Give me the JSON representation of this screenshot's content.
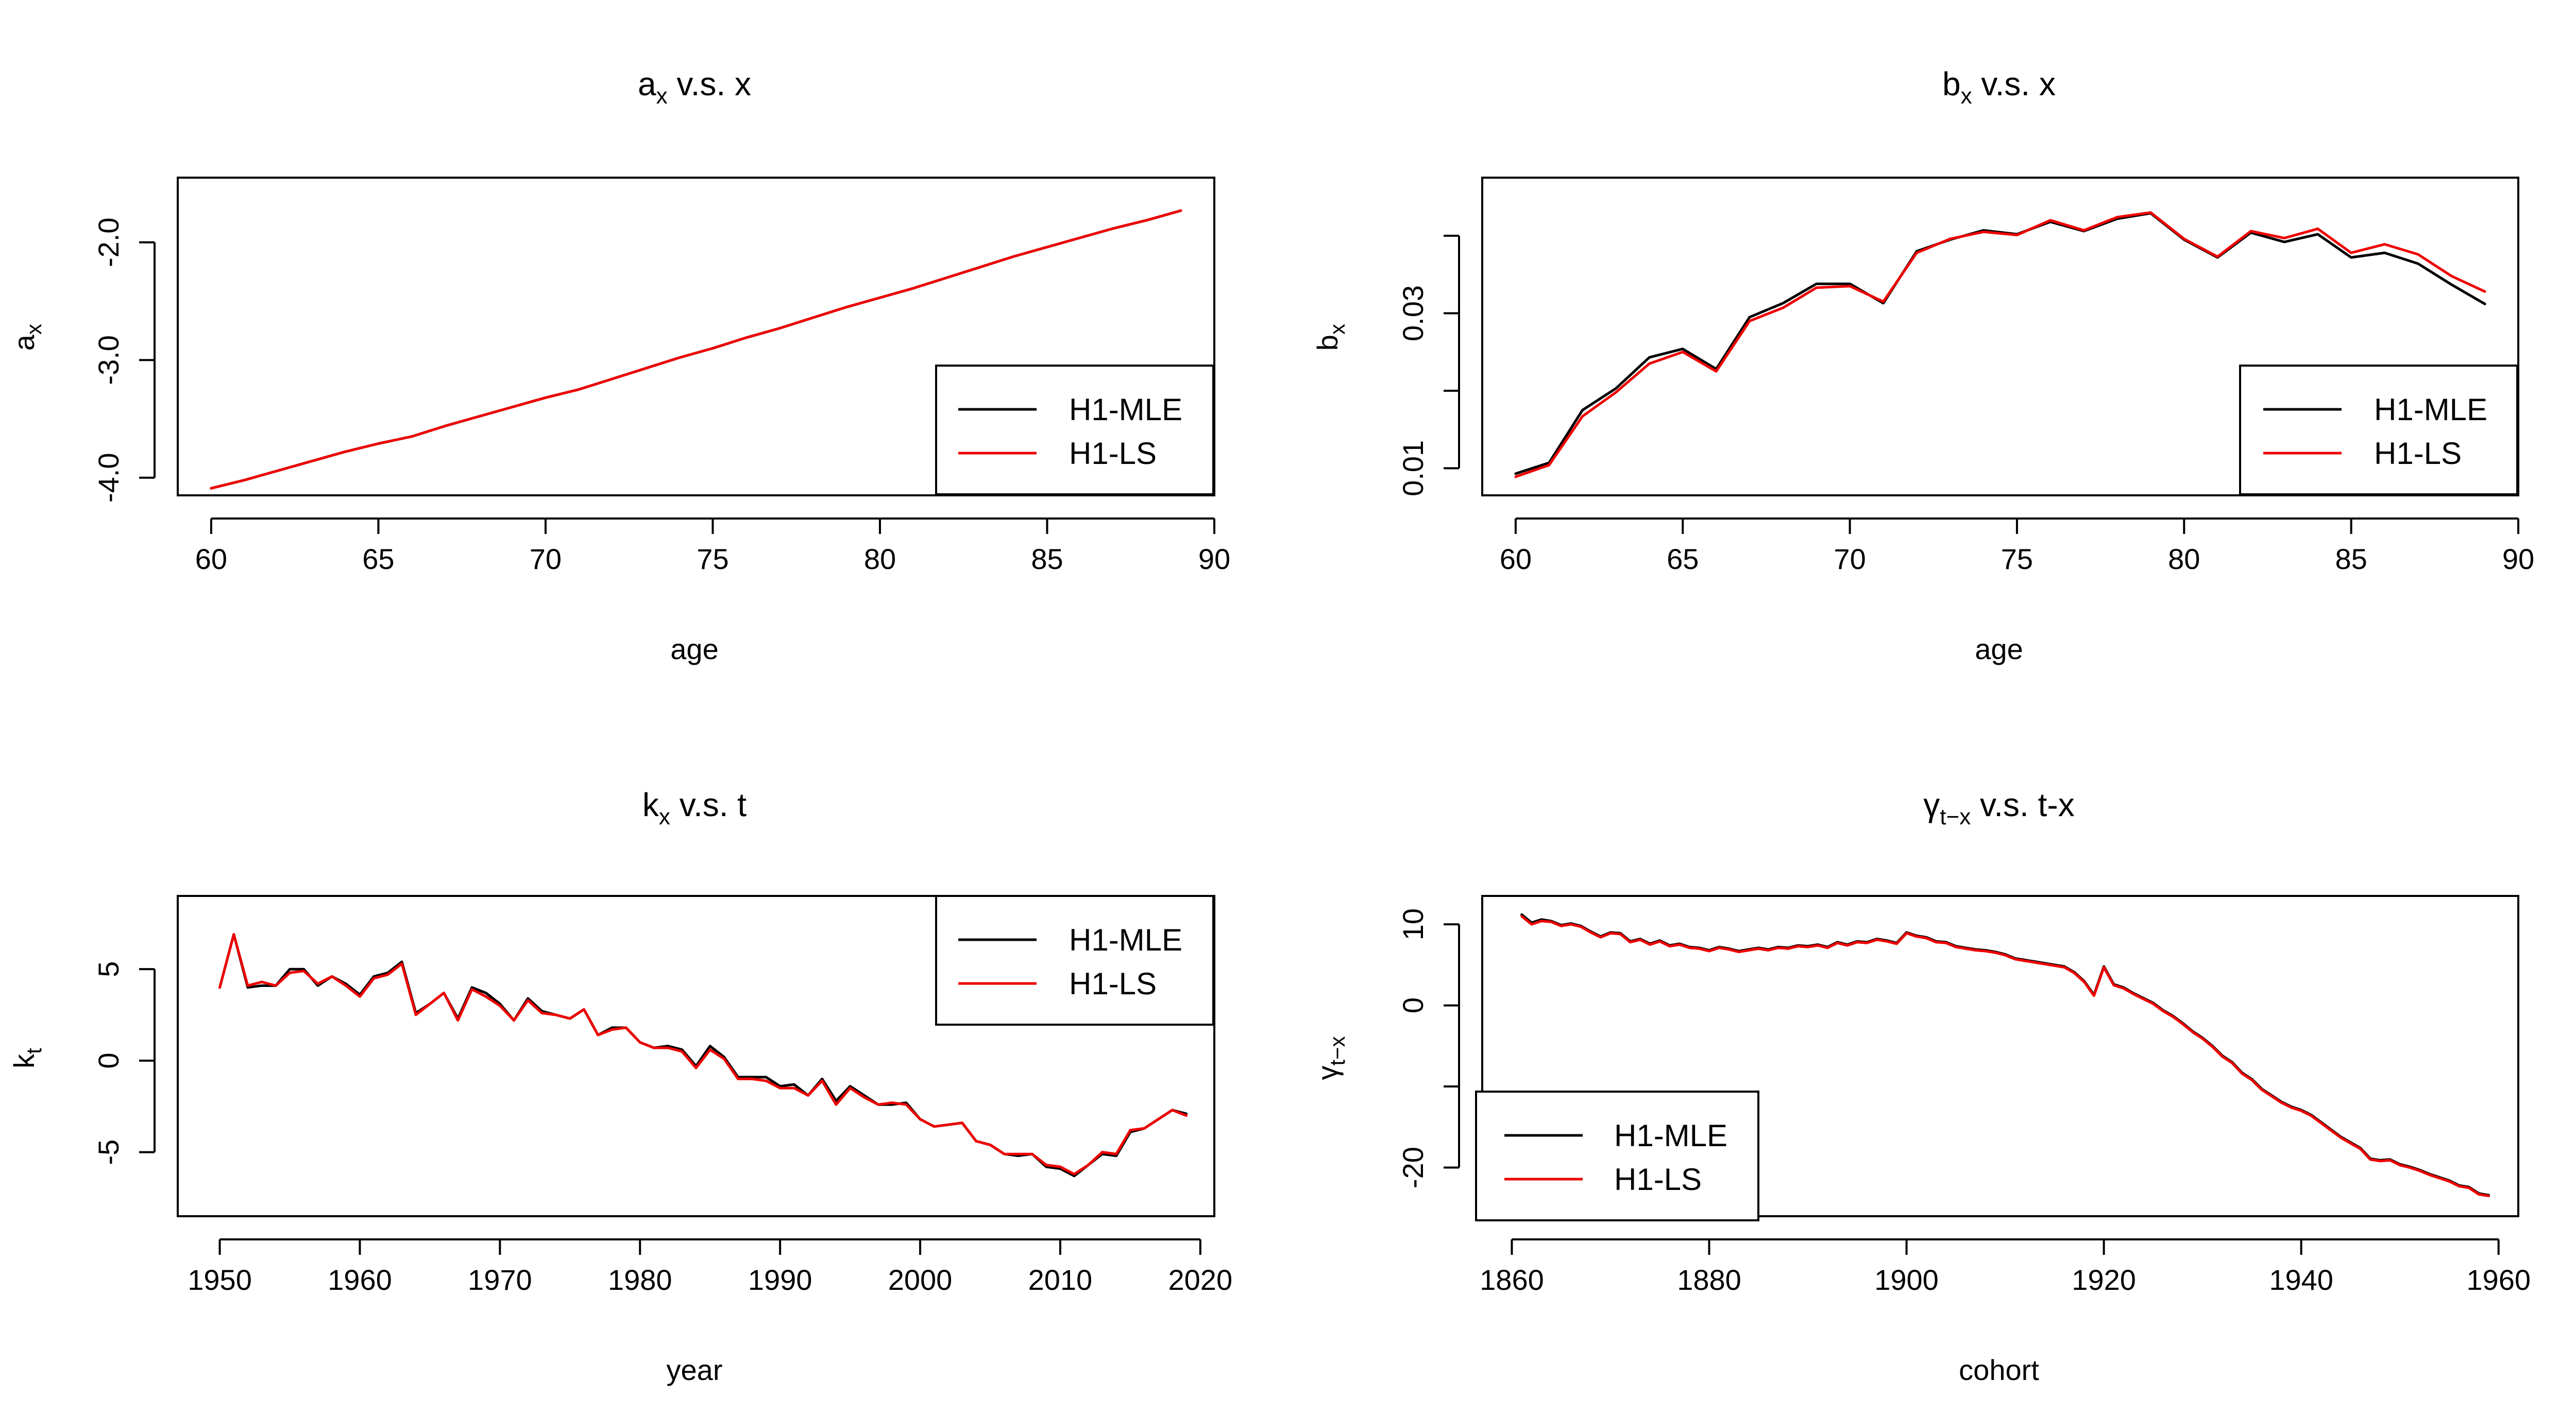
{
  "colors": {
    "mle": "#000000",
    "ls": "#ee0000",
    "axis": "#000000",
    "background": "#ffffff"
  },
  "chart_data": [
    {
      "type": "line",
      "title": {
        "main": "a",
        "sub": "x",
        "rest": " v.s. x"
      },
      "xlabel": "age",
      "ylabel": {
        "main": "a",
        "sub": "x"
      },
      "xlim": [
        59,
        90
      ],
      "ylim": [
        -4.15,
        -1.45
      ],
      "xticks": [
        60,
        65,
        70,
        75,
        80,
        85,
        90
      ],
      "xtick_labels": [
        "60",
        "65",
        "70",
        "75",
        "80",
        "85",
        "90"
      ],
      "yticks": [
        -4.0,
        -3.0,
        -2.0
      ],
      "ytick_labels": [
        "-4.0",
        "-3.0",
        "-2.0"
      ],
      "legend": {
        "position": "bottom-right",
        "labels": [
          "H1-MLE",
          "H1-LS"
        ]
      },
      "x": [
        60,
        61,
        62,
        63,
        64,
        65,
        66,
        67,
        68,
        69,
        70,
        71,
        72,
        73,
        74,
        75,
        76,
        77,
        78,
        79,
        80,
        81,
        82,
        83,
        84,
        85,
        86,
        87,
        88,
        89
      ],
      "series": [
        {
          "name": "H1-MLE",
          "color": "#000000",
          "values": [
            -4.09,
            -4.02,
            -3.94,
            -3.86,
            -3.78,
            -3.71,
            -3.65,
            -3.56,
            -3.48,
            -3.4,
            -3.32,
            -3.25,
            -3.16,
            -3.07,
            -2.98,
            -2.9,
            -2.81,
            -2.73,
            -2.64,
            -2.55,
            -2.47,
            -2.39,
            -2.3,
            -2.21,
            -2.12,
            -2.04,
            -1.96,
            -1.88,
            -1.81,
            -1.73
          ]
        },
        {
          "name": "H1-LS",
          "color": "#ee0000",
          "values": [
            -4.09,
            -4.02,
            -3.94,
            -3.86,
            -3.78,
            -3.71,
            -3.65,
            -3.56,
            -3.48,
            -3.4,
            -3.32,
            -3.25,
            -3.16,
            -3.07,
            -2.98,
            -2.9,
            -2.81,
            -2.73,
            -2.64,
            -2.55,
            -2.47,
            -2.39,
            -2.3,
            -2.21,
            -2.12,
            -2.04,
            -1.96,
            -1.88,
            -1.81,
            -1.73
          ]
        }
      ]
    },
    {
      "type": "line",
      "title": {
        "main": "b",
        "sub": "x",
        "rest": " v.s. x"
      },
      "xlabel": "age",
      "ylabel": {
        "main": "b",
        "sub": "x"
      },
      "xlim": [
        59,
        90
      ],
      "ylim": [
        0.0065,
        0.0475
      ],
      "xticks": [
        60,
        65,
        70,
        75,
        80,
        85,
        90
      ],
      "xtick_labels": [
        "60",
        "65",
        "70",
        "75",
        "80",
        "85",
        "90"
      ],
      "yticks": [
        0.01,
        0.03
      ],
      "ytick_labels": [
        "0.01",
        "0.03"
      ],
      "yticks_minor": [
        0.02,
        0.04
      ],
      "legend": {
        "position": "bottom-right",
        "labels": [
          "H1-MLE",
          "H1-LS"
        ]
      },
      "x": [
        60,
        61,
        62,
        63,
        64,
        65,
        66,
        67,
        68,
        69,
        70,
        71,
        72,
        73,
        74,
        75,
        76,
        77,
        78,
        79,
        80,
        81,
        82,
        83,
        84,
        85,
        86,
        87,
        88,
        89
      ],
      "series": [
        {
          "name": "H1-MLE",
          "color": "#000000",
          "values": [
            0.0093,
            0.0107,
            0.0175,
            0.0203,
            0.0243,
            0.0254,
            0.0228,
            0.0295,
            0.0313,
            0.0338,
            0.0338,
            0.0313,
            0.038,
            0.0395,
            0.0407,
            0.0402,
            0.0418,
            0.0406,
            0.0422,
            0.0429,
            0.0395,
            0.0372,
            0.0404,
            0.0392,
            0.0402,
            0.0372,
            0.0378,
            0.0364,
            0.0337,
            0.0312
          ]
        },
        {
          "name": "H1-LS",
          "color": "#ee0000",
          "values": [
            0.0089,
            0.0104,
            0.0167,
            0.0198,
            0.0235,
            0.025,
            0.0225,
            0.029,
            0.0307,
            0.0333,
            0.0335,
            0.0315,
            0.0378,
            0.0396,
            0.0405,
            0.0401,
            0.042,
            0.0407,
            0.0424,
            0.043,
            0.0396,
            0.0373,
            0.0406,
            0.0397,
            0.0409,
            0.0378,
            0.0389,
            0.0376,
            0.0348,
            0.0328
          ]
        }
      ]
    },
    {
      "type": "line",
      "title": {
        "main": "k",
        "sub": "x",
        "rest": " v.s. t"
      },
      "xlabel": "year",
      "ylabel": {
        "main": "k",
        "sub": "t"
      },
      "xlim": [
        1947,
        2021
      ],
      "ylim": [
        -8.5,
        9.0
      ],
      "xticks": [
        1950,
        1960,
        1970,
        1980,
        1990,
        2000,
        2010,
        2020
      ],
      "xtick_labels": [
        "1950",
        "1960",
        "1970",
        "1980",
        "1990",
        "2000",
        "2010",
        "2020"
      ],
      "yticks": [
        -5,
        0,
        5
      ],
      "ytick_labels": [
        "-5",
        "0",
        "5"
      ],
      "legend": {
        "position": "top-right",
        "labels": [
          "H1-MLE",
          "H1-LS"
        ]
      },
      "x": [
        1950,
        1951,
        1952,
        1953,
        1954,
        1955,
        1956,
        1957,
        1958,
        1959,
        1960,
        1961,
        1962,
        1963,
        1964,
        1965,
        1966,
        1967,
        1968,
        1969,
        1970,
        1971,
        1972,
        1973,
        1974,
        1975,
        1976,
        1977,
        1978,
        1979,
        1980,
        1981,
        1982,
        1983,
        1984,
        1985,
        1986,
        1987,
        1988,
        1989,
        1990,
        1991,
        1992,
        1993,
        1994,
        1995,
        1996,
        1997,
        1998,
        1999,
        2000,
        2001,
        2002,
        2003,
        2004,
        2005,
        2006,
        2007,
        2008,
        2009,
        2010,
        2011,
        2012,
        2013,
        2014,
        2015,
        2016,
        2017,
        2018,
        2019
      ],
      "series": [
        {
          "name": "H1-MLE",
          "color": "#000000",
          "values": [
            4.0,
            6.9,
            4.0,
            4.1,
            4.1,
            5.0,
            5.0,
            4.1,
            4.6,
            4.2,
            3.6,
            4.6,
            4.8,
            5.4,
            2.6,
            3.1,
            3.7,
            2.3,
            4.0,
            3.7,
            3.1,
            2.2,
            3.4,
            2.7,
            2.5,
            2.3,
            2.8,
            1.4,
            1.8,
            1.8,
            1.0,
            0.7,
            0.8,
            0.6,
            -0.3,
            0.8,
            0.2,
            -0.9,
            -0.9,
            -0.9,
            -1.4,
            -1.3,
            -1.9,
            -1.0,
            -2.2,
            -1.4,
            -1.9,
            -2.4,
            -2.4,
            -2.3,
            -3.2,
            -3.6,
            -3.5,
            -3.4,
            -4.4,
            -4.6,
            -5.1,
            -5.2,
            -5.1,
            -5.8,
            -5.9,
            -6.3,
            -5.7,
            -5.1,
            -5.2,
            -3.9,
            -3.7,
            -3.2,
            -2.7,
            -2.9
          ]
        },
        {
          "name": "H1-LS",
          "color": "#ee0000",
          "values": [
            4.0,
            6.9,
            4.1,
            4.3,
            4.1,
            4.8,
            4.9,
            4.2,
            4.6,
            4.1,
            3.5,
            4.5,
            4.7,
            5.3,
            2.5,
            3.1,
            3.7,
            2.2,
            3.9,
            3.5,
            3.0,
            2.2,
            3.3,
            2.6,
            2.5,
            2.3,
            2.8,
            1.4,
            1.7,
            1.8,
            1.0,
            0.7,
            0.7,
            0.5,
            -0.4,
            0.6,
            0.1,
            -1.0,
            -1.0,
            -1.1,
            -1.5,
            -1.5,
            -1.9,
            -1.1,
            -2.4,
            -1.5,
            -2.0,
            -2.4,
            -2.3,
            -2.4,
            -3.2,
            -3.6,
            -3.5,
            -3.4,
            -4.4,
            -4.6,
            -5.1,
            -5.1,
            -5.1,
            -5.7,
            -5.8,
            -6.2,
            -5.7,
            -5.0,
            -5.1,
            -3.8,
            -3.7,
            -3.2,
            -2.7,
            -3.0
          ]
        }
      ]
    },
    {
      "type": "line",
      "title": {
        "main": "γ",
        "sub": "t−x",
        "rest": " v.s. t-x"
      },
      "xlabel": "cohort",
      "ylabel": {
        "main": "γ",
        "sub": "t−x"
      },
      "xlim": [
        1857,
        1962
      ],
      "ylim": [
        -26,
        13.5
      ],
      "xticks": [
        1860,
        1880,
        1900,
        1920,
        1940,
        1960
      ],
      "xtick_labels": [
        "1860",
        "1880",
        "1900",
        "1920",
        "1940",
        "1960"
      ],
      "yticks": [
        -20,
        0,
        10
      ],
      "ytick_labels": [
        "-20",
        "0",
        "10"
      ],
      "yticks_minor": [
        -10
      ],
      "legend": {
        "position": "bottom-left",
        "labels": [
          "H1-MLE",
          "H1-LS"
        ]
      },
      "x": [
        1861,
        1862,
        1863,
        1864,
        1865,
        1866,
        1867,
        1868,
        1869,
        1870,
        1871,
        1872,
        1873,
        1874,
        1875,
        1876,
        1877,
        1878,
        1879,
        1880,
        1881,
        1882,
        1883,
        1884,
        1885,
        1886,
        1887,
        1888,
        1889,
        1890,
        1891,
        1892,
        1893,
        1894,
        1895,
        1896,
        1897,
        1898,
        1899,
        1900,
        1901,
        1902,
        1903,
        1904,
        1905,
        1906,
        1907,
        1908,
        1909,
        1910,
        1911,
        1912,
        1913,
        1914,
        1915,
        1916,
        1917,
        1918,
        1919,
        1920,
        1921,
        1922,
        1923,
        1924,
        1925,
        1926,
        1927,
        1928,
        1929,
        1930,
        1931,
        1932,
        1933,
        1934,
        1935,
        1936,
        1937,
        1938,
        1939,
        1940,
        1941,
        1942,
        1943,
        1944,
        1945,
        1946,
        1947,
        1948,
        1949,
        1950,
        1951,
        1952,
        1953,
        1954,
        1955,
        1956,
        1957,
        1958,
        1959
      ],
      "series": [
        {
          "name": "H1-MLE",
          "color": "#000000",
          "values": [
            11.2,
            10.2,
            10.6,
            10.4,
            9.9,
            10.1,
            9.8,
            9.1,
            8.5,
            9.0,
            8.9,
            7.9,
            8.2,
            7.6,
            8.0,
            7.4,
            7.6,
            7.2,
            7.1,
            6.8,
            7.2,
            7.0,
            6.7,
            6.9,
            7.1,
            6.9,
            7.2,
            7.1,
            7.4,
            7.3,
            7.5,
            7.2,
            7.8,
            7.5,
            7.9,
            7.8,
            8.2,
            8.0,
            7.7,
            9.0,
            8.6,
            8.4,
            7.9,
            7.8,
            7.3,
            7.1,
            6.9,
            6.8,
            6.6,
            6.3,
            5.8,
            5.6,
            5.4,
            5.2,
            5.0,
            4.8,
            4.1,
            3.0,
            1.3,
            4.8,
            2.6,
            2.2,
            1.5,
            0.9,
            0.3,
            -0.6,
            -1.3,
            -2.2,
            -3.2,
            -4.0,
            -5.0,
            -6.2,
            -7.0,
            -8.3,
            -9.1,
            -10.3,
            -11.1,
            -11.9,
            -12.5,
            -12.9,
            -13.5,
            -14.4,
            -15.3,
            -16.2,
            -16.9,
            -17.6,
            -18.9,
            -19.1,
            -19.0,
            -19.6,
            -19.9,
            -20.3,
            -20.8,
            -21.2,
            -21.6,
            -22.2,
            -22.4,
            -23.2,
            -23.4
          ]
        },
        {
          "name": "H1-LS",
          "color": "#ee0000",
          "values": [
            11.0,
            10.0,
            10.4,
            10.3,
            9.8,
            10.0,
            9.7,
            9.0,
            8.4,
            8.9,
            8.8,
            7.8,
            8.1,
            7.5,
            7.9,
            7.3,
            7.5,
            7.1,
            7.0,
            6.7,
            7.1,
            6.9,
            6.6,
            6.8,
            7.0,
            6.8,
            7.1,
            7.0,
            7.3,
            7.2,
            7.4,
            7.1,
            7.7,
            7.4,
            7.8,
            7.7,
            8.1,
            7.9,
            7.6,
            8.9,
            8.5,
            8.3,
            7.8,
            7.7,
            7.2,
            7.0,
            6.8,
            6.7,
            6.5,
            6.2,
            5.7,
            5.5,
            5.3,
            5.1,
            4.9,
            4.7,
            4.0,
            2.9,
            1.2,
            4.7,
            2.5,
            2.1,
            1.4,
            0.8,
            0.2,
            -0.7,
            -1.4,
            -2.3,
            -3.3,
            -4.1,
            -5.1,
            -6.3,
            -7.1,
            -8.4,
            -9.2,
            -10.4,
            -11.2,
            -12.0,
            -12.6,
            -13.0,
            -13.6,
            -14.5,
            -15.4,
            -16.3,
            -17.0,
            -17.7,
            -19.0,
            -19.2,
            -19.1,
            -19.7,
            -20.0,
            -20.4,
            -20.9,
            -21.3,
            -21.7,
            -22.3,
            -22.5,
            -23.3,
            -23.5
          ]
        }
      ]
    }
  ]
}
